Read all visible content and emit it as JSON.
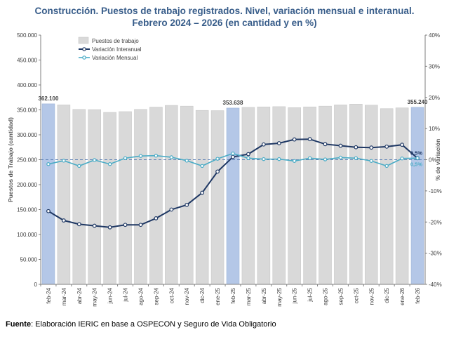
{
  "header": {
    "title_line1": "Construcción. Puestos de trabajo registrados. Nivel, variación mensual e interanual.",
    "title_line2": "Febrero 2024 – 2026 (en cantidad y en %)"
  },
  "footer": {
    "source_label": "Fuente",
    "source_text": ": Elaboración IERIC en base a OSPECON y Seguro de Vida Obligatorio"
  },
  "chart_data": {
    "type": "bar+line",
    "categories": [
      "feb-24",
      "mar-24",
      "abr-24",
      "may-24",
      "jun-24",
      "jul-24",
      "ago-24",
      "sep-24",
      "oct-24",
      "nov-24",
      "dic-24",
      "ene-25",
      "feb-25",
      "mar-25",
      "abr-25",
      "may-25",
      "jun-25",
      "jul-25",
      "ago-25",
      "sep-25",
      "oct-25",
      "nov-25",
      "dic-25",
      "ene-26",
      "feb-26"
    ],
    "ylabel": "Puestos de Trabajo (cantidad)",
    "y2label": "% de variación",
    "ylim": [
      0,
      500000
    ],
    "y2lim": [
      -40,
      40
    ],
    "yticks": [
      "0",
      "50.000",
      "100.000",
      "150.000",
      "200.000",
      "250.000",
      "300.000",
      "350.000",
      "400.000",
      "450.000",
      "500.000"
    ],
    "y2ticks": [
      "-40%",
      "-30%",
      "-20%",
      "-10%",
      "0%",
      "10%",
      "20%",
      "30%",
      "40%"
    ],
    "bars": {
      "name": "Puestos de trabajo",
      "values": [
        362100,
        360000,
        351000,
        350500,
        345000,
        346500,
        351000,
        355500,
        359000,
        357500,
        349000,
        348500,
        353638,
        355000,
        356000,
        356500,
        354500,
        356000,
        357500,
        360000,
        361500,
        359500,
        352500,
        354000,
        355240
      ],
      "highlight_indices": [
        0,
        12,
        24
      ],
      "color": "#d9d9d9",
      "highlight_color": "#b4c7e7"
    },
    "bar_labels": [
      {
        "index": 0,
        "text": "362.100"
      },
      {
        "index": 12,
        "text": "353.638"
      },
      {
        "index": 24,
        "text": "355.240"
      }
    ],
    "series": [
      {
        "name": "Variación Interanual",
        "color": "#1f3864",
        "values": [
          -16.5,
          -19.5,
          -20.7,
          -21.2,
          -21.7,
          -20.9,
          -20.9,
          -18.8,
          -16.0,
          -14.5,
          -10.6,
          -3.8,
          0.9,
          1.8,
          4.9,
          5.3,
          6.5,
          6.6,
          5.0,
          4.5,
          4.0,
          3.9,
          4.2,
          4.8,
          0.5
        ]
      },
      {
        "name": "Variación Mensual",
        "color": "#4bacc6",
        "values": [
          -1.4,
          -0.3,
          -2.0,
          -0.1,
          -1.4,
          0.5,
          1.2,
          1.3,
          0.8,
          -0.3,
          -2.0,
          0.3,
          2.0,
          0.5,
          0.2,
          0.2,
          -0.4,
          0.5,
          0.1,
          0.7,
          0.5,
          -0.4,
          -2.0,
          0.4,
          0.5
        ]
      }
    ],
    "line_end_labels": [
      {
        "series": "Variación Interanual",
        "text": "0,5%"
      },
      {
        "series": "Variación Mensual",
        "text": "0,5%"
      }
    ],
    "reference_line": {
      "axis": "y2",
      "value": 0,
      "style": "dashed"
    },
    "legend_position": "top-left",
    "grid": false
  }
}
